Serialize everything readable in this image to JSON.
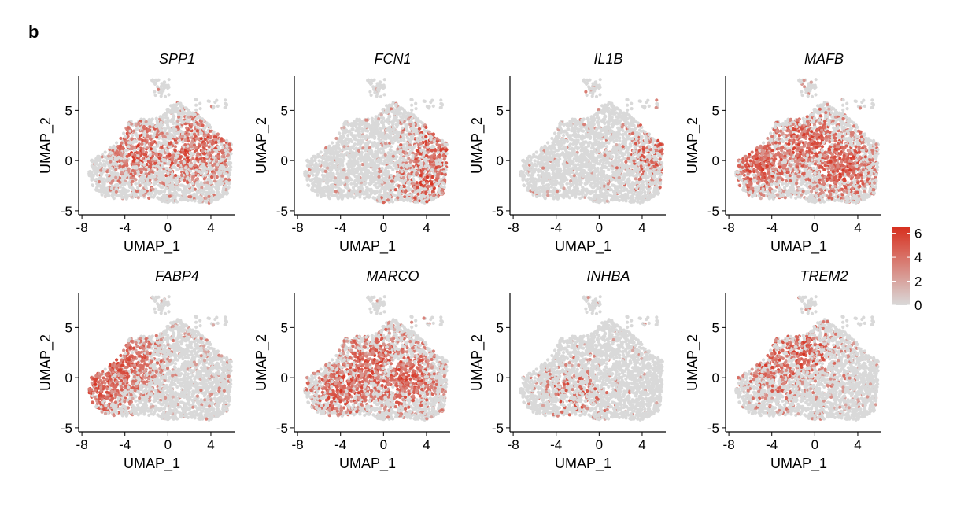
{
  "figure": {
    "panel_label": "b",
    "colors": {
      "low": "#d9d9d9",
      "high": "#d7301f",
      "axis": "#000000"
    }
  },
  "chart_data": [
    {
      "type": "scatter",
      "title": "SPP1",
      "xlabel": "UMAP_1",
      "ylabel": "UMAP_2",
      "xlim": [
        -8.3,
        6.2
      ],
      "ylim": [
        -5.4,
        8.4
      ],
      "xticks": [
        -8,
        -4,
        0,
        4
      ],
      "yticks": [
        -5,
        0,
        5
      ],
      "expression_hotspots": [
        [
          1.5,
          0.5
        ],
        [
          -2.5,
          1.0
        ],
        [
          3.5,
          1.5
        ]
      ],
      "expression_level": 0.55
    },
    {
      "type": "scatter",
      "title": "FCN1",
      "xlabel": "UMAP_1",
      "ylabel": "UMAP_2",
      "xlim": [
        -8.3,
        6.2
      ],
      "ylim": [
        -5.4,
        8.4
      ],
      "xticks": [
        -8,
        -4,
        0,
        4
      ],
      "yticks": [
        -5,
        0,
        5
      ],
      "expression_hotspots": [
        [
          3.8,
          -2.0
        ],
        [
          4.5,
          1.0
        ]
      ],
      "expression_level": 0.45
    },
    {
      "type": "scatter",
      "title": "IL1B",
      "xlabel": "UMAP_1",
      "ylabel": "UMAP_2",
      "xlim": [
        -8.3,
        6.2
      ],
      "ylim": [
        -5.4,
        8.4
      ],
      "xticks": [
        -8,
        -4,
        0,
        4
      ],
      "yticks": [
        -5,
        0,
        5
      ],
      "expression_hotspots": [
        [
          5.0,
          0.7
        ]
      ],
      "expression_level": 0.3
    },
    {
      "type": "scatter",
      "title": "MAFB",
      "xlabel": "UMAP_1",
      "ylabel": "UMAP_2",
      "xlim": [
        -8.3,
        6.2
      ],
      "ylim": [
        -5.4,
        8.4
      ],
      "xticks": [
        -8,
        -4,
        0,
        4
      ],
      "yticks": [
        -5,
        0,
        5
      ],
      "expression_hotspots": [
        [
          2.5,
          -0.5
        ],
        [
          -1.0,
          2.0
        ],
        [
          -5.0,
          -0.5
        ]
      ],
      "expression_level": 0.75
    },
    {
      "type": "scatter",
      "title": "FABP4",
      "xlabel": "UMAP_1",
      "ylabel": "UMAP_2",
      "xlim": [
        -8.3,
        6.2
      ],
      "ylim": [
        -5.4,
        8.4
      ],
      "xticks": [
        -8,
        -4,
        0,
        4
      ],
      "yticks": [
        -5,
        0,
        5
      ],
      "expression_hotspots": [
        [
          -6.5,
          -1.0
        ],
        [
          -4.0,
          1.5
        ]
      ],
      "expression_level": 0.7
    },
    {
      "type": "scatter",
      "title": "MARCO",
      "xlabel": "UMAP_1",
      "ylabel": "UMAP_2",
      "xlim": [
        -8.3,
        6.2
      ],
      "ylim": [
        -5.4,
        8.4
      ],
      "xticks": [
        -8,
        -4,
        0,
        4
      ],
      "yticks": [
        -5,
        0,
        5
      ],
      "expression_hotspots": [
        [
          -4.0,
          -1.0
        ],
        [
          -1.0,
          1.5
        ],
        [
          2.0,
          0.0
        ]
      ],
      "expression_level": 0.7
    },
    {
      "type": "scatter",
      "title": "INHBA",
      "xlabel": "UMAP_1",
      "ylabel": "UMAP_2",
      "xlim": [
        -8.3,
        6.2
      ],
      "ylim": [
        -5.4,
        8.4
      ],
      "xticks": [
        -8,
        -4,
        0,
        4
      ],
      "yticks": [
        -5,
        0,
        5
      ],
      "expression_hotspots": [
        [
          -3.0,
          -1.5
        ]
      ],
      "expression_level": 0.2
    },
    {
      "type": "scatter",
      "title": "TREM2",
      "xlabel": "UMAP_1",
      "ylabel": "UMAP_2",
      "xlim": [
        -8.3,
        6.2
      ],
      "ylim": [
        -5.4,
        8.4
      ],
      "xticks": [
        -8,
        -4,
        0,
        4
      ],
      "yticks": [
        -5,
        0,
        5
      ],
      "expression_hotspots": [
        [
          -4.0,
          1.0
        ],
        [
          -1.0,
          2.5
        ]
      ],
      "expression_level": 0.5
    }
  ],
  "legend": {
    "type": "colorbar",
    "range": [
      0,
      6.5
    ],
    "ticks": [
      "6",
      "4",
      "2",
      "0"
    ],
    "tick_values": [
      6,
      4,
      2,
      0
    ]
  }
}
